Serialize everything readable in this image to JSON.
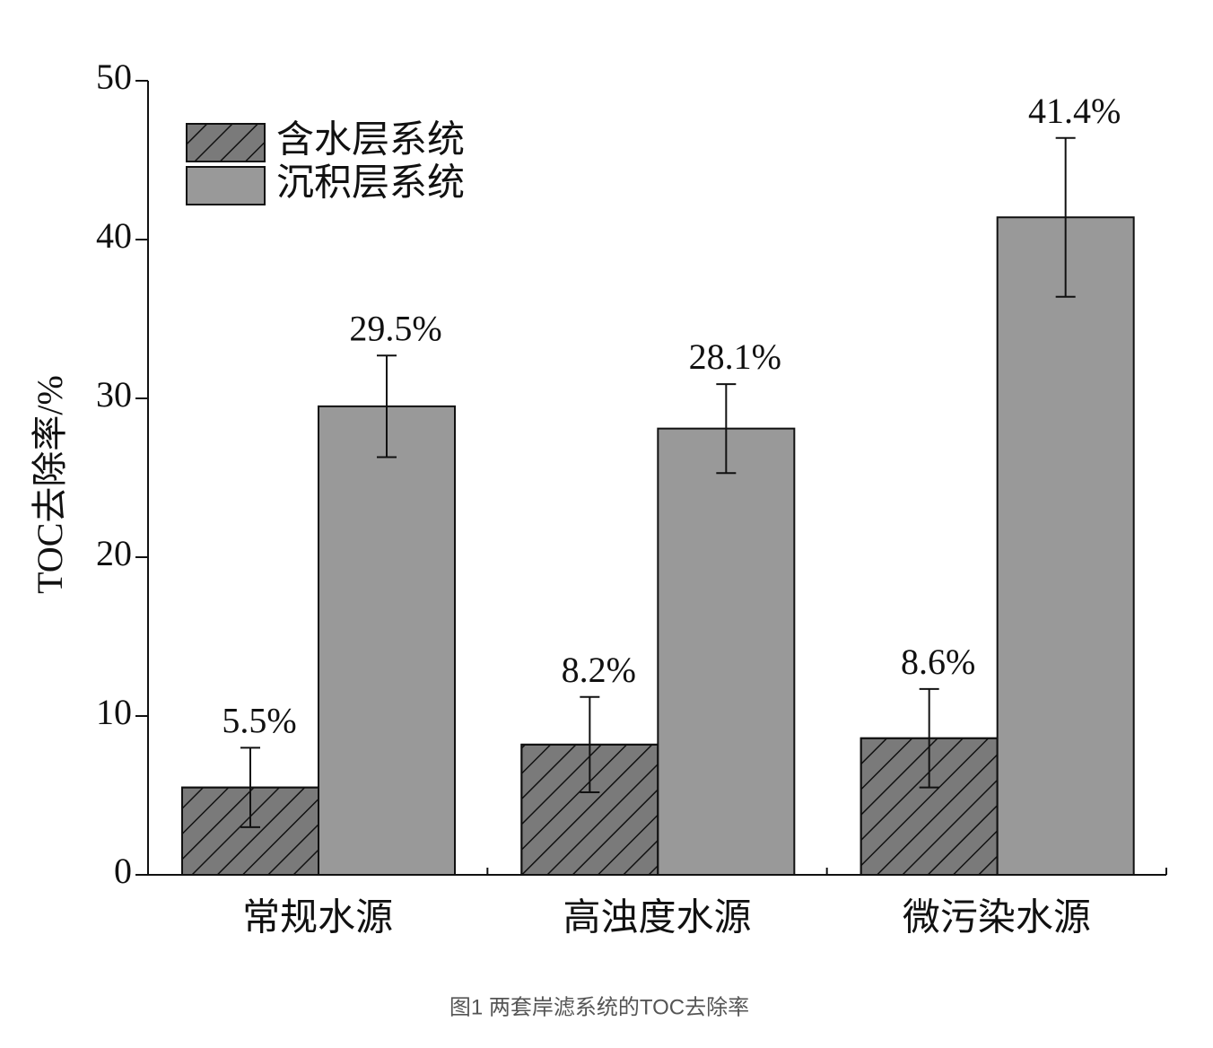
{
  "chart_data": {
    "type": "bar",
    "ylabel": "TOC去除率/%",
    "caption": "图1 两套岸滤系统的TOC去除率",
    "categories": [
      "常规水源",
      "高浊度水源",
      "微污染水源"
    ],
    "series": [
      {
        "name": "含水层系统",
        "color": "#7a7a7a",
        "hatch": true,
        "values": [
          5.5,
          8.2,
          8.6
        ],
        "errors": [
          2.5,
          3.0,
          3.1
        ],
        "value_labels": [
          "5.5%",
          "8.2%",
          "8.6%"
        ]
      },
      {
        "name": "沉积层系统",
        "color": "#999999",
        "hatch": false,
        "values": [
          29.5,
          28.1,
          41.4
        ],
        "errors": [
          3.2,
          2.8,
          5.0
        ],
        "value_labels": [
          "29.5%",
          "28.1%",
          "41.4%"
        ]
      }
    ],
    "ylim": [
      0,
      50
    ],
    "yticks": [
      0,
      10,
      20,
      30,
      40,
      50
    ],
    "legend": "upper left"
  }
}
